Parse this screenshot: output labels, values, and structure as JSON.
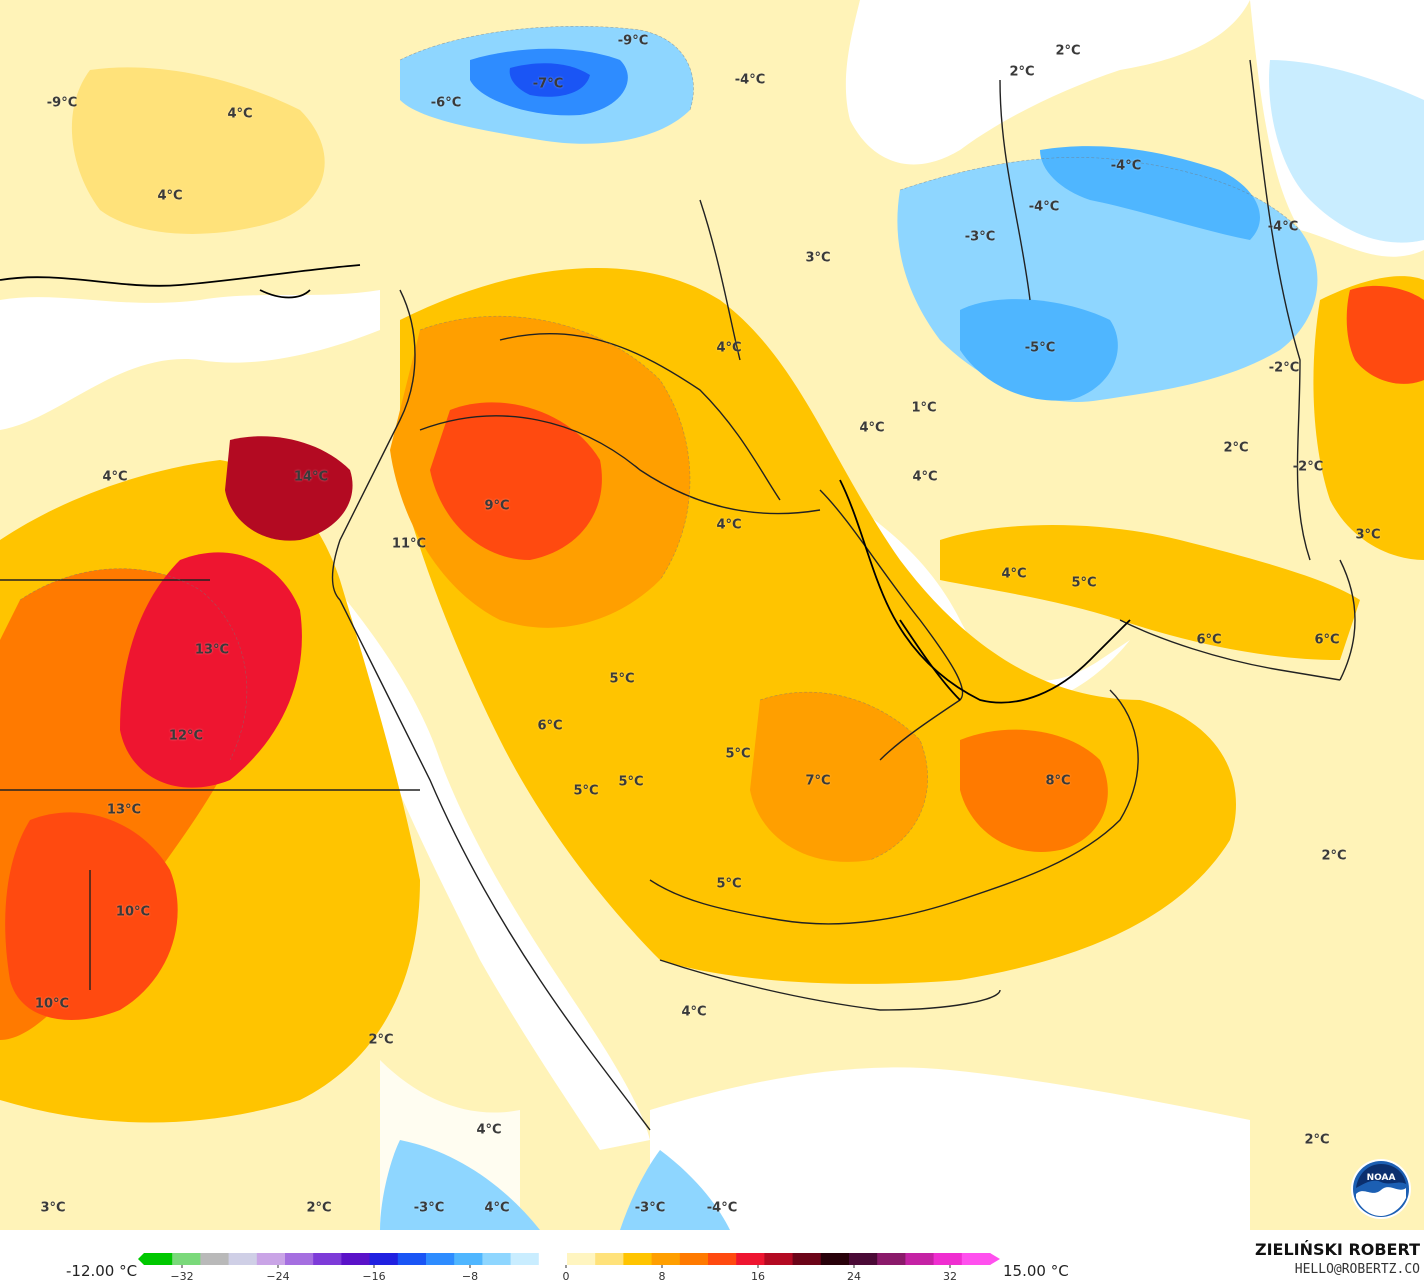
{
  "map": {
    "labels": [
      {
        "id": "t01",
        "text": "-9°C"
      },
      {
        "id": "t02",
        "text": "-7°C"
      },
      {
        "id": "t03",
        "text": "-6°C"
      },
      {
        "id": "t04",
        "text": "-4°C"
      },
      {
        "id": "t05",
        "text": "-9°C"
      },
      {
        "id": "t06",
        "text": "4°C"
      },
      {
        "id": "t07",
        "text": "4°C"
      },
      {
        "id": "t08",
        "text": "2°C"
      },
      {
        "id": "t09",
        "text": "2°C"
      },
      {
        "id": "t10",
        "text": "-4°C"
      },
      {
        "id": "t11",
        "text": "-4°C"
      },
      {
        "id": "t12",
        "text": "-3°C"
      },
      {
        "id": "t13",
        "text": "-4°C"
      },
      {
        "id": "t14",
        "text": "3°C"
      },
      {
        "id": "t15",
        "text": "-5°C"
      },
      {
        "id": "t16",
        "text": "4°C"
      },
      {
        "id": "t17",
        "text": "-2°C"
      },
      {
        "id": "t18",
        "text": "1°C"
      },
      {
        "id": "t19",
        "text": "4°C"
      },
      {
        "id": "t20",
        "text": "2°C"
      },
      {
        "id": "t21",
        "text": "-2°C"
      },
      {
        "id": "t22",
        "text": "4°C"
      },
      {
        "id": "t23",
        "text": "4°C"
      },
      {
        "id": "t24",
        "text": "14°C"
      },
      {
        "id": "t25",
        "text": "9°C"
      },
      {
        "id": "t26",
        "text": "4°C"
      },
      {
        "id": "t27",
        "text": "11°C"
      },
      {
        "id": "t28",
        "text": "3°C"
      },
      {
        "id": "t29",
        "text": "4°C"
      },
      {
        "id": "t30",
        "text": "5°C"
      },
      {
        "id": "t31",
        "text": "6°C"
      },
      {
        "id": "t32",
        "text": "6°C"
      },
      {
        "id": "t33",
        "text": "13°C"
      },
      {
        "id": "t34",
        "text": "5°C"
      },
      {
        "id": "t35",
        "text": "6°C"
      },
      {
        "id": "t36",
        "text": "12°C"
      },
      {
        "id": "t37",
        "text": "5°C"
      },
      {
        "id": "t38",
        "text": "7°C"
      },
      {
        "id": "t39",
        "text": "8°C"
      },
      {
        "id": "t40",
        "text": "13°C"
      },
      {
        "id": "t41",
        "text": "5°C"
      },
      {
        "id": "t42",
        "text": "5°C"
      },
      {
        "id": "t43",
        "text": "2°C"
      },
      {
        "id": "t44",
        "text": "5°C"
      },
      {
        "id": "t45",
        "text": "10°C"
      },
      {
        "id": "t46",
        "text": "10°C"
      },
      {
        "id": "t47",
        "text": "4°C"
      },
      {
        "id": "t48",
        "text": "2°C"
      },
      {
        "id": "t49",
        "text": "4°C"
      },
      {
        "id": "t50",
        "text": "2°C"
      },
      {
        "id": "t51",
        "text": "3°C"
      },
      {
        "id": "t52",
        "text": "2°C"
      },
      {
        "id": "t53",
        "text": "-3°C"
      },
      {
        "id": "t54",
        "text": "4°C"
      },
      {
        "id": "t55",
        "text": "-3°C"
      },
      {
        "id": "t56",
        "text": "-4°C"
      }
    ]
  },
  "colorbar": {
    "min_label": "-12.00 °C",
    "max_label": "15.00 °C",
    "ticks": [
      "−32",
      "−24",
      "−16",
      "−8",
      "0",
      "8",
      "16",
      "24",
      "32"
    ],
    "colors": [
      "#00c800",
      "#7ad97a",
      "#b9b9b9",
      "#cfcfe6",
      "#c9a4e6",
      "#a56fe0",
      "#7d3bd8",
      "#5a12c8",
      "#2020e0",
      "#1a55f5",
      "#2e8cff",
      "#4fb6ff",
      "#8ed6ff",
      "#c9edff",
      "#ffffff",
      "#fff5c0",
      "#ffe27a",
      "#ffc400",
      "#ff9f00",
      "#ff7a00",
      "#ff4a10",
      "#ee1530",
      "#b30a22",
      "#6b0418",
      "#28010a",
      "#4a0a36",
      "#8a1a6a",
      "#c422a4",
      "#ef2ed0",
      "#ff50ee"
    ]
  },
  "footer": {
    "author": "ZIELIŃSKI ROBERT",
    "email": "HELLO@ROBERTZ.CO"
  },
  "logo": {
    "text": "NOAA"
  }
}
